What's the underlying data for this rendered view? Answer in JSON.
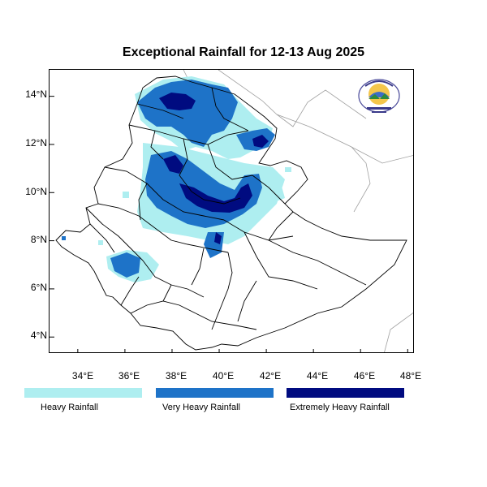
{
  "title": "Exceptional Rainfall for 12-13 Aug 2025",
  "map": {
    "lon_range": [
      32.8,
      48.3
    ],
    "lat_range": [
      3.3,
      15.1
    ],
    "x_ticks": [
      {
        "value": 34,
        "label": "34°E"
      },
      {
        "value": 36,
        "label": "36°E"
      },
      {
        "value": 38,
        "label": "38°E"
      },
      {
        "value": 40,
        "label": "40°E"
      },
      {
        "value": 42,
        "label": "42°E"
      },
      {
        "value": 44,
        "label": "44°E"
      },
      {
        "value": 46,
        "label": "46°E"
      },
      {
        "value": 48,
        "label": "48°E"
      }
    ],
    "y_ticks": [
      {
        "value": 14,
        "label": "14°N"
      },
      {
        "value": 12,
        "label": "12°N"
      },
      {
        "value": 10,
        "label": "10°N"
      },
      {
        "value": 8,
        "label": "8°N"
      },
      {
        "value": 6,
        "label": "6°N"
      },
      {
        "value": 4,
        "label": "4°N"
      }
    ],
    "colors": {
      "heavy": "#aeeef0",
      "very_heavy": "#1e73c8",
      "extremely_heavy": "#000b80",
      "border": "#000000",
      "neighbor_border": "#a0a0a0"
    }
  },
  "legend": [
    {
      "label": "Heavy Rainfall",
      "color": "#aeeef0"
    },
    {
      "label": "Very Heavy Rainfall",
      "color": "#1e73c8"
    },
    {
      "label": "Extremely Heavy Rainfall",
      "color": "#000b80"
    }
  ]
}
